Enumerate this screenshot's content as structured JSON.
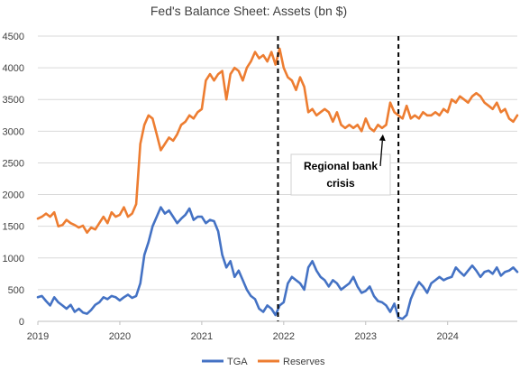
{
  "chart_data": {
    "type": "line",
    "title": "Fed's Balance Sheet: Assets (bn $)",
    "xlabel": "",
    "ylabel": "",
    "xlim": [
      2019.0,
      2024.85
    ],
    "ylim": [
      0,
      4500
    ],
    "y_ticks": [
      0,
      500,
      1000,
      1500,
      2000,
      2500,
      3000,
      3500,
      4000,
      4500
    ],
    "x_ticks": [
      "2019",
      "2020",
      "2021",
      "2022",
      "2023",
      "2024"
    ],
    "grid": "horizontal",
    "legend_position": "bottom",
    "series": [
      {
        "name": "TGA",
        "color": "#4472C4",
        "x": [
          2019.0,
          2019.05,
          2019.1,
          2019.15,
          2019.2,
          2019.25,
          2019.3,
          2019.35,
          2019.4,
          2019.45,
          2019.5,
          2019.55,
          2019.6,
          2019.65,
          2019.7,
          2019.75,
          2019.8,
          2019.85,
          2019.9,
          2019.95,
          2020.0,
          2020.05,
          2020.1,
          2020.15,
          2020.2,
          2020.25,
          2020.3,
          2020.35,
          2020.4,
          2020.45,
          2020.5,
          2020.55,
          2020.6,
          2020.65,
          2020.7,
          2020.75,
          2020.8,
          2020.85,
          2020.9,
          2020.95,
          2021.0,
          2021.05,
          2021.1,
          2021.15,
          2021.2,
          2021.25,
          2021.3,
          2021.35,
          2021.4,
          2021.45,
          2021.5,
          2021.55,
          2021.6,
          2021.65,
          2021.7,
          2021.75,
          2021.8,
          2021.85,
          2021.9,
          2021.95,
          2022.0,
          2022.05,
          2022.1,
          2022.15,
          2022.2,
          2022.25,
          2022.3,
          2022.35,
          2022.4,
          2022.45,
          2022.5,
          2022.55,
          2022.6,
          2022.65,
          2022.7,
          2022.75,
          2022.8,
          2022.85,
          2022.9,
          2022.95,
          2023.0,
          2023.05,
          2023.1,
          2023.15,
          2023.2,
          2023.25,
          2023.3,
          2023.35,
          2023.4,
          2023.45,
          2023.5,
          2023.55,
          2023.6,
          2023.65,
          2023.7,
          2023.75,
          2023.8,
          2023.85,
          2023.9,
          2023.95,
          2024.0,
          2024.05,
          2024.1,
          2024.15,
          2024.2,
          2024.25,
          2024.3,
          2024.35,
          2024.4,
          2024.45,
          2024.5,
          2024.55,
          2024.6,
          2024.65,
          2024.7,
          2024.75,
          2024.8,
          2024.85
        ],
        "values": [
          380,
          400,
          320,
          250,
          380,
          300,
          250,
          200,
          260,
          150,
          200,
          140,
          120,
          180,
          260,
          300,
          380,
          350,
          400,
          380,
          330,
          380,
          420,
          370,
          400,
          600,
          1050,
          1250,
          1500,
          1650,
          1800,
          1700,
          1750,
          1650,
          1550,
          1620,
          1680,
          1780,
          1600,
          1650,
          1650,
          1550,
          1600,
          1580,
          1420,
          1050,
          850,
          950,
          700,
          800,
          650,
          500,
          400,
          350,
          200,
          150,
          250,
          200,
          100,
          250,
          300,
          600,
          700,
          650,
          600,
          500,
          850,
          950,
          800,
          700,
          650,
          550,
          650,
          600,
          500,
          550,
          600,
          700,
          550,
          450,
          480,
          550,
          400,
          320,
          300,
          250,
          150,
          280,
          60,
          40,
          100,
          350,
          500,
          620,
          550,
          450,
          600,
          650,
          700,
          650,
          680,
          700,
          850,
          780,
          720,
          800,
          880,
          800,
          700,
          780,
          800,
          750,
          850,
          720,
          780,
          800,
          850,
          780
        ]
      },
      {
        "name": "Reserves",
        "color": "#ED7D31",
        "x": [
          2019.0,
          2019.05,
          2019.1,
          2019.15,
          2019.2,
          2019.25,
          2019.3,
          2019.35,
          2019.4,
          2019.45,
          2019.5,
          2019.55,
          2019.6,
          2019.65,
          2019.7,
          2019.75,
          2019.8,
          2019.85,
          2019.9,
          2019.95,
          2020.0,
          2020.05,
          2020.1,
          2020.15,
          2020.2,
          2020.25,
          2020.3,
          2020.35,
          2020.4,
          2020.45,
          2020.5,
          2020.55,
          2020.6,
          2020.65,
          2020.7,
          2020.75,
          2020.8,
          2020.85,
          2020.9,
          2020.95,
          2021.0,
          2021.05,
          2021.1,
          2021.15,
          2021.2,
          2021.25,
          2021.3,
          2021.35,
          2021.4,
          2021.45,
          2021.5,
          2021.55,
          2021.6,
          2021.65,
          2021.7,
          2021.75,
          2021.8,
          2021.85,
          2021.9,
          2021.95,
          2022.0,
          2022.05,
          2022.1,
          2022.15,
          2022.2,
          2022.25,
          2022.3,
          2022.35,
          2022.4,
          2022.45,
          2022.5,
          2022.55,
          2022.6,
          2022.65,
          2022.7,
          2022.75,
          2022.8,
          2022.85,
          2022.9,
          2022.95,
          2023.0,
          2023.05,
          2023.1,
          2023.15,
          2023.2,
          2023.25,
          2023.3,
          2023.35,
          2023.4,
          2023.45,
          2023.5,
          2023.55,
          2023.6,
          2023.65,
          2023.7,
          2023.75,
          2023.8,
          2023.85,
          2023.9,
          2023.95,
          2024.0,
          2024.05,
          2024.1,
          2024.15,
          2024.2,
          2024.25,
          2024.3,
          2024.35,
          2024.4,
          2024.45,
          2024.5,
          2024.55,
          2024.6,
          2024.65,
          2024.7,
          2024.75,
          2024.8,
          2024.85
        ],
        "values": [
          1620,
          1650,
          1700,
          1650,
          1720,
          1500,
          1520,
          1600,
          1550,
          1520,
          1480,
          1510,
          1400,
          1480,
          1450,
          1550,
          1650,
          1550,
          1720,
          1650,
          1680,
          1800,
          1650,
          1700,
          1850,
          2800,
          3100,
          3250,
          3200,
          2950,
          2700,
          2800,
          2900,
          2850,
          2950,
          3100,
          3150,
          3250,
          3200,
          3300,
          3350,
          3800,
          3900,
          3800,
          3900,
          3950,
          3500,
          3900,
          4000,
          3950,
          3800,
          4000,
          4100,
          4250,
          4150,
          4200,
          4100,
          4250,
          4050,
          4300,
          4000,
          3850,
          3800,
          3650,
          3850,
          3700,
          3300,
          3350,
          3250,
          3300,
          3350,
          3300,
          3150,
          3300,
          3100,
          3050,
          3100,
          3050,
          3100,
          3000,
          3200,
          3050,
          3000,
          3100,
          3050,
          3100,
          3450,
          3300,
          3250,
          3200,
          3400,
          3200,
          3250,
          3200,
          3300,
          3250,
          3250,
          3300,
          3250,
          3350,
          3300,
          3500,
          3450,
          3550,
          3500,
          3450,
          3550,
          3600,
          3550,
          3450,
          3400,
          3350,
          3450,
          3300,
          3350,
          3200,
          3150,
          3250
        ]
      }
    ],
    "vertical_lines_x": [
      2021.93,
      2023.4
    ],
    "annotation": {
      "text_line1": "Regional bank",
      "text_line2": "crisis",
      "arrow_to_x": 2023.21,
      "arrow_to_y": 2950
    }
  }
}
